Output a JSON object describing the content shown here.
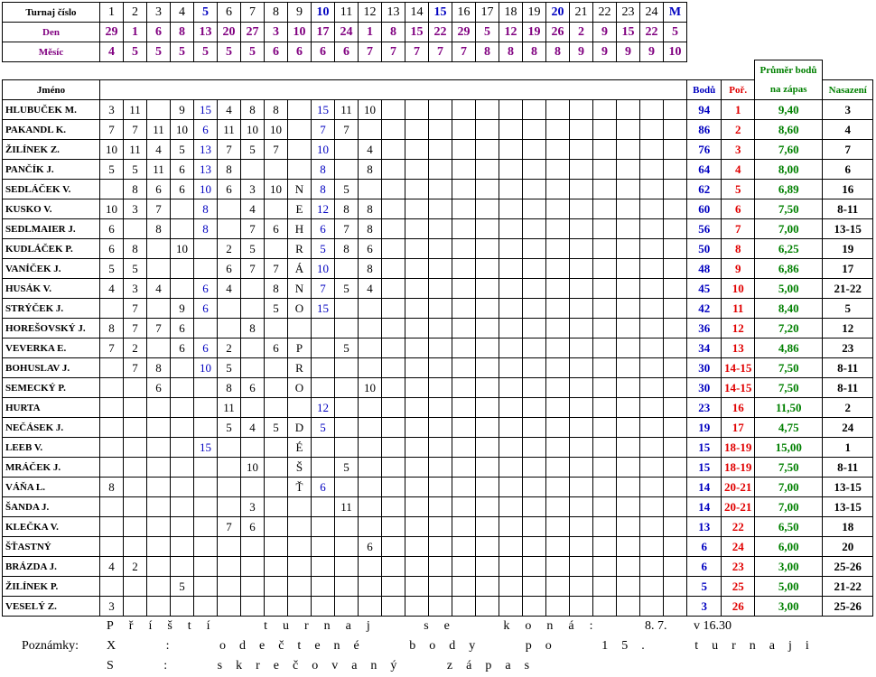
{
  "header": {
    "labels": [
      "Turnaj číslo",
      "Den",
      "Měsíc"
    ],
    "tournament": [
      1,
      2,
      3,
      4,
      5,
      6,
      7,
      8,
      9,
      10,
      11,
      12,
      13,
      14,
      15,
      16,
      17,
      18,
      19,
      20,
      21,
      22,
      23,
      24,
      "M"
    ],
    "day": [
      29,
      1,
      6,
      8,
      13,
      20,
      27,
      3,
      10,
      17,
      24,
      1,
      8,
      15,
      22,
      29,
      5,
      12,
      19,
      26,
      2,
      9,
      15,
      22,
      5
    ],
    "month": [
      4,
      5,
      5,
      5,
      5,
      5,
      5,
      6,
      6,
      6,
      6,
      7,
      7,
      7,
      7,
      7,
      8,
      8,
      8,
      8,
      9,
      9,
      9,
      9,
      10
    ]
  },
  "table": {
    "columns": {
      "name": "Jméno",
      "points": "Bodů",
      "rank": "Poř.",
      "average": [
        "Průměr bodů",
        "na zápas"
      ],
      "seed": "Nasazení"
    },
    "rows": [
      {
        "name": "HLUBUČEK M.",
        "scores": [
          3,
          11,
          null,
          9,
          15,
          4,
          8,
          8,
          null,
          15,
          11,
          10,
          null,
          null,
          null,
          null,
          null,
          null,
          null,
          null,
          null,
          null,
          null,
          null,
          null
        ],
        "points": 94,
        "rank": 1,
        "average": "9,40",
        "seed": 3
      },
      {
        "name": "PAKANDL K.",
        "scores": [
          7,
          7,
          11,
          10,
          6,
          11,
          10,
          10,
          null,
          7,
          7,
          null,
          null,
          null,
          null,
          null,
          null,
          null,
          null,
          null,
          null,
          null,
          null,
          null,
          null
        ],
        "points": 86,
        "rank": 2,
        "average": "8,60",
        "seed": 4
      },
      {
        "name": "ŽILÍNEK Z.",
        "scores": [
          10,
          11,
          4,
          5,
          13,
          7,
          5,
          7,
          null,
          10,
          null,
          4,
          null,
          null,
          null,
          null,
          null,
          null,
          null,
          null,
          null,
          null,
          null,
          null,
          null
        ],
        "points": 76,
        "rank": 3,
        "average": "7,60",
        "seed": 7
      },
      {
        "name": "PANČÍK J.",
        "scores": [
          5,
          5,
          11,
          6,
          13,
          8,
          null,
          null,
          null,
          8,
          null,
          8,
          null,
          null,
          null,
          null,
          null,
          null,
          null,
          null,
          null,
          null,
          null,
          null,
          null
        ],
        "points": 64,
        "rank": 4,
        "average": "8,00",
        "seed": 6
      },
      {
        "name": "SEDLÁČEK V.",
        "scores": [
          null,
          8,
          6,
          6,
          10,
          6,
          3,
          10,
          "N",
          8,
          5,
          null,
          null,
          null,
          null,
          null,
          null,
          null,
          null,
          null,
          null,
          null,
          null,
          null,
          null
        ],
        "points": 62,
        "rank": 5,
        "average": "6,89",
        "seed": 16
      },
      {
        "name": "KUSKO V.",
        "scores": [
          10,
          3,
          7,
          null,
          8,
          null,
          4,
          null,
          "E",
          12,
          8,
          8,
          null,
          null,
          null,
          null,
          null,
          null,
          null,
          null,
          null,
          null,
          null,
          null,
          null
        ],
        "points": 60,
        "rank": 6,
        "average": "7,50",
        "seed": "8-11"
      },
      {
        "name": "SEDLMAIER J.",
        "scores": [
          6,
          null,
          8,
          null,
          8,
          null,
          7,
          6,
          "H",
          6,
          7,
          8,
          null,
          null,
          null,
          null,
          null,
          null,
          null,
          null,
          null,
          null,
          null,
          null,
          null
        ],
        "points": 56,
        "rank": 7,
        "average": "7,00",
        "seed": "13-15"
      },
      {
        "name": "KUDLÁČEK P.",
        "scores": [
          6,
          8,
          null,
          10,
          null,
          2,
          5,
          null,
          "R",
          5,
          8,
          6,
          null,
          null,
          null,
          null,
          null,
          null,
          null,
          null,
          null,
          null,
          null,
          null,
          null
        ],
        "points": 50,
        "rank": 8,
        "average": "6,25",
        "seed": 19
      },
      {
        "name": "VANÍČEK J.",
        "scores": [
          5,
          5,
          null,
          null,
          null,
          6,
          7,
          7,
          "Á",
          10,
          null,
          8,
          null,
          null,
          null,
          null,
          null,
          null,
          null,
          null,
          null,
          null,
          null,
          null,
          null
        ],
        "points": 48,
        "rank": 9,
        "average": "6,86",
        "seed": 17
      },
      {
        "name": "HUSÁK V.",
        "scores": [
          4,
          3,
          4,
          null,
          6,
          4,
          null,
          8,
          "N",
          7,
          5,
          4,
          null,
          null,
          null,
          null,
          null,
          null,
          null,
          null,
          null,
          null,
          null,
          null,
          null
        ],
        "points": 45,
        "rank": 10,
        "average": "5,00",
        "seed": "21-22"
      },
      {
        "name": "STRÝČEK J.",
        "scores": [
          null,
          7,
          null,
          9,
          6,
          null,
          null,
          5,
          "O",
          15,
          null,
          null,
          null,
          null,
          null,
          null,
          null,
          null,
          null,
          null,
          null,
          null,
          null,
          null,
          null
        ],
        "points": 42,
        "rank": 11,
        "average": "8,40",
        "seed": 5
      },
      {
        "name": "HOREŠOVSKÝ J.",
        "scores": [
          8,
          7,
          7,
          6,
          null,
          null,
          8,
          null,
          null,
          null,
          null,
          null,
          null,
          null,
          null,
          null,
          null,
          null,
          null,
          null,
          null,
          null,
          null,
          null,
          null
        ],
        "points": 36,
        "rank": 12,
        "average": "7,20",
        "seed": 12
      },
      {
        "name": "VEVERKA E.",
        "scores": [
          7,
          2,
          null,
          6,
          6,
          2,
          null,
          6,
          "P",
          null,
          5,
          null,
          null,
          null,
          null,
          null,
          null,
          null,
          null,
          null,
          null,
          null,
          null,
          null,
          null
        ],
        "points": 34,
        "rank": 13,
        "average": "4,86",
        "seed": 23
      },
      {
        "name": "BOHUSLAV J.",
        "scores": [
          null,
          7,
          8,
          null,
          10,
          5,
          null,
          null,
          "R",
          null,
          null,
          null,
          null,
          null,
          null,
          null,
          null,
          null,
          null,
          null,
          null,
          null,
          null,
          null,
          null
        ],
        "points": 30,
        "rank": "14-15",
        "average": "7,50",
        "seed": "8-11"
      },
      {
        "name": "SEMECKÝ P.",
        "scores": [
          null,
          null,
          6,
          null,
          null,
          8,
          6,
          null,
          "O",
          null,
          null,
          10,
          null,
          null,
          null,
          null,
          null,
          null,
          null,
          null,
          null,
          null,
          null,
          null,
          null
        ],
        "points": 30,
        "rank": "14-15",
        "average": "7,50",
        "seed": "8-11"
      },
      {
        "name": "HURTA",
        "scores": [
          null,
          null,
          null,
          null,
          null,
          11,
          null,
          null,
          null,
          12,
          null,
          null,
          null,
          null,
          null,
          null,
          null,
          null,
          null,
          null,
          null,
          null,
          null,
          null,
          null
        ],
        "points": 23,
        "rank": 16,
        "average": "11,50",
        "seed": 2
      },
      {
        "name": "NEČÁSEK J.",
        "scores": [
          null,
          null,
          null,
          null,
          null,
          5,
          4,
          5,
          "D",
          5,
          null,
          null,
          null,
          null,
          null,
          null,
          null,
          null,
          null,
          null,
          null,
          null,
          null,
          null,
          null
        ],
        "points": 19,
        "rank": 17,
        "average": "4,75",
        "seed": 24
      },
      {
        "name": "LEEB V.",
        "scores": [
          null,
          null,
          null,
          null,
          15,
          null,
          null,
          null,
          "É",
          null,
          null,
          null,
          null,
          null,
          null,
          null,
          null,
          null,
          null,
          null,
          null,
          null,
          null,
          null,
          null
        ],
        "points": 15,
        "rank": "18-19",
        "average": "15,00",
        "seed": 1
      },
      {
        "name": "MRÁČEK  J.",
        "scores": [
          null,
          null,
          null,
          null,
          null,
          null,
          10,
          null,
          "Š",
          null,
          5,
          null,
          null,
          null,
          null,
          null,
          null,
          null,
          null,
          null,
          null,
          null,
          null,
          null,
          null
        ],
        "points": 15,
        "rank": "18-19",
        "average": "7,50",
        "seed": "8-11"
      },
      {
        "name": "VÁŇA L.",
        "scores": [
          8,
          null,
          null,
          null,
          null,
          null,
          null,
          null,
          "Ť",
          6,
          null,
          null,
          null,
          null,
          null,
          null,
          null,
          null,
          null,
          null,
          null,
          null,
          null,
          null,
          null
        ],
        "points": 14,
        "rank": "20-21",
        "average": "7,00",
        "seed": "13-15"
      },
      {
        "name": "ŠANDA J.",
        "scores": [
          null,
          null,
          null,
          null,
          null,
          null,
          3,
          null,
          null,
          null,
          11,
          null,
          null,
          null,
          null,
          null,
          null,
          null,
          null,
          null,
          null,
          null,
          null,
          null,
          null
        ],
        "points": 14,
        "rank": "20-21",
        "average": "7,00",
        "seed": "13-15"
      },
      {
        "name": "KLEČKA V.",
        "scores": [
          null,
          null,
          null,
          null,
          null,
          7,
          6,
          null,
          null,
          null,
          null,
          null,
          null,
          null,
          null,
          null,
          null,
          null,
          null,
          null,
          null,
          null,
          null,
          null,
          null
        ],
        "points": 13,
        "rank": 22,
        "average": "6,50",
        "seed": 18
      },
      {
        "name": "ŠŤASTNÝ",
        "scores": [
          null,
          null,
          null,
          null,
          null,
          null,
          null,
          null,
          null,
          null,
          null,
          6,
          null,
          null,
          null,
          null,
          null,
          null,
          null,
          null,
          null,
          null,
          null,
          null,
          null
        ],
        "points": 6,
        "rank": 24,
        "average": "6,00",
        "seed": 20
      },
      {
        "name": "BRÁZDA J.",
        "scores": [
          4,
          2,
          null,
          null,
          null,
          null,
          null,
          null,
          null,
          null,
          null,
          null,
          null,
          null,
          null,
          null,
          null,
          null,
          null,
          null,
          null,
          null,
          null,
          null,
          null
        ],
        "points": 6,
        "rank": 23,
        "average": "3,00",
        "seed": "25-26"
      },
      {
        "name": "ŽILÍNEK P.",
        "scores": [
          null,
          null,
          null,
          5,
          null,
          null,
          null,
          null,
          null,
          null,
          null,
          null,
          null,
          null,
          null,
          null,
          null,
          null,
          null,
          null,
          null,
          null,
          null,
          null,
          null
        ],
        "points": 5,
        "rank": 25,
        "average": "5,00",
        "seed": "21-22"
      },
      {
        "name": "VESELÝ Z.",
        "scores": [
          3,
          null,
          null,
          null,
          null,
          null,
          null,
          null,
          null,
          null,
          null,
          null,
          null,
          null,
          null,
          null,
          null,
          null,
          null,
          null,
          null,
          null,
          null,
          null,
          null
        ],
        "points": 3,
        "rank": 26,
        "average": "3,00",
        "seed": "25-26"
      }
    ]
  },
  "footer": {
    "next": {
      "label": "Příští turnaj se koná:",
      "date": "8. 7.",
      "time": "v 16.30"
    },
    "notes_label": "Poznámky:",
    "notes": [
      "X : odečtené body po 15. turnaji",
      "S : skrečovaný zápas"
    ]
  }
}
